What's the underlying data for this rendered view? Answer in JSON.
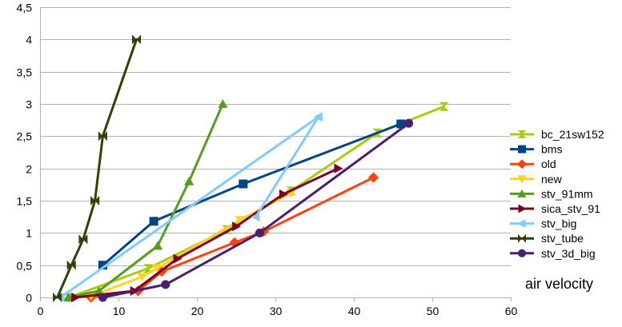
{
  "chart_data": {
    "type": "line",
    "title": "",
    "xlabel": "",
    "ylabel": "",
    "annotation": "air velocity",
    "xlim": [
      0,
      60
    ],
    "ylim": [
      0,
      4.5
    ],
    "x_ticks": [
      0,
      10,
      20,
      30,
      40,
      50,
      60
    ],
    "x_tick_labels": [
      "0",
      "10",
      "20",
      "30",
      "40",
      "50",
      "60"
    ],
    "y_ticks": [
      0,
      0.5,
      1,
      1.5,
      2,
      2.5,
      3,
      3.5,
      4,
      4.5
    ],
    "y_tick_labels": [
      "0",
      "0,5",
      "1",
      "1,5",
      "2",
      "2,5",
      "3",
      "3,5",
      "4",
      "4,5"
    ],
    "grid": "horizontal",
    "legend_position": "right",
    "series": [
      {
        "name": "bc_21sw152",
        "color": "#a6cc14",
        "marker": "bowtie-v",
        "points": [
          [
            3.7,
            0
          ],
          [
            13.8,
            0.45
          ],
          [
            23.8,
            1.05
          ],
          [
            32,
            1.65
          ],
          [
            43,
            2.55
          ],
          [
            51.5,
            2.96
          ]
        ]
      },
      {
        "name": "bms",
        "color": "#004586",
        "marker": "square",
        "points": [
          [
            8,
            0.5
          ],
          [
            14.5,
            1.18
          ],
          [
            25.9,
            1.76
          ],
          [
            46,
            2.69
          ]
        ]
      },
      {
        "name": "old",
        "color": "#ff420e",
        "marker": "diamond",
        "points": [
          [
            6.5,
            0
          ],
          [
            12.5,
            0.1
          ],
          [
            15.5,
            0.4
          ],
          [
            24.8,
            0.85
          ],
          [
            28.5,
            1.02
          ],
          [
            42.5,
            1.86
          ]
        ]
      },
      {
        "name": "new",
        "color": "#ffd320",
        "marker": "triangle-down",
        "points": [
          [
            6.5,
            0.02
          ],
          [
            13,
            0.32
          ],
          [
            14.9,
            0.45
          ],
          [
            25.5,
            1.2
          ],
          [
            32,
            1.62
          ]
        ]
      },
      {
        "name": "stv_91mm",
        "color": "#579d1c",
        "marker": "triangle-up",
        "points": [
          [
            3.6,
            0
          ],
          [
            7.5,
            0.1
          ],
          [
            15,
            0.8
          ],
          [
            19,
            1.8
          ],
          [
            23.3,
            3
          ]
        ]
      },
      {
        "name": "sica_stv_91",
        "color": "#7e0021",
        "marker": "triangle-right",
        "points": [
          [
            4.5,
            0
          ],
          [
            12,
            0.1
          ],
          [
            17.5,
            0.6
          ],
          [
            25,
            1.1
          ],
          [
            31,
            1.6
          ],
          [
            38,
            2
          ]
        ]
      },
      {
        "name": "stv_big",
        "color": "#83caff",
        "marker": "triangle-left",
        "points": [
          [
            2.6,
            0
          ],
          [
            35.5,
            2.8
          ],
          [
            27.5,
            1.25
          ]
        ]
      },
      {
        "name": "stv_tube",
        "color": "#314004",
        "marker": "bowtie-h",
        "points": [
          [
            2.2,
            0
          ],
          [
            4,
            0.5
          ],
          [
            5.5,
            0.9
          ],
          [
            7,
            1.5
          ],
          [
            8,
            2.5
          ],
          [
            12.3,
            4
          ]
        ]
      },
      {
        "name": "stv_3d_big",
        "color": "#4b1f6f",
        "marker": "circle",
        "points": [
          [
            8,
            0
          ],
          [
            16,
            0.2
          ],
          [
            28,
            1
          ],
          [
            47,
            2.7
          ]
        ]
      }
    ]
  }
}
